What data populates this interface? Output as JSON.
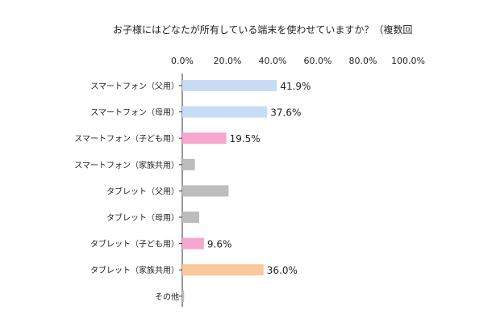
{
  "chart_data": {
    "type": "bar",
    "orientation": "horizontal",
    "title": "お子様にはどなたが所有している端末を使わせていますか？（複数回",
    "xlabel": "",
    "ylabel": "",
    "xlim": [
      0,
      100
    ],
    "ticks": [
      "0.0%",
      "20.0%",
      "40.0%",
      "60.0%",
      "80.0%",
      "100.0%"
    ],
    "grid": false,
    "categories": [
      "スマートフォン（父用）",
      "スマートフォン（母用）",
      "スマートフォン（子ども用）",
      "スマートフォン（家族共用）",
      "タブレット（父用）",
      "タブレット（母用）",
      "タブレット（子ども用）",
      "タブレット（家族共用）",
      "その他"
    ],
    "values": [
      41.9,
      37.6,
      19.5,
      5.6,
      20.5,
      7.5,
      9.6,
      36.0,
      0.8
    ],
    "data_labels": [
      "41.9%",
      "37.6%",
      "19.5%",
      "",
      "",
      "",
      "9.6%",
      "36.0%",
      ""
    ],
    "colors": [
      "#c9dcf6",
      "#c9dcf6",
      "#f6a6cf",
      "#bdbdbd",
      "#bdbdbd",
      "#bdbdbd",
      "#f6a6cf",
      "#f9c89b",
      "#bdbdbd"
    ]
  }
}
